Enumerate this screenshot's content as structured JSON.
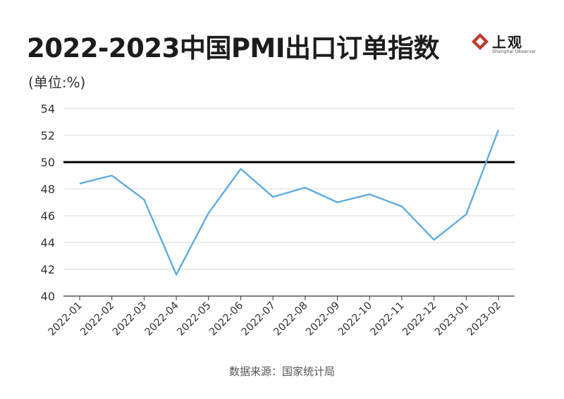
{
  "header": {
    "title": "2022-2023中国PMI出口订单指数",
    "unit": "(单位:%)"
  },
  "logo": {
    "name": "上观",
    "subtitle": "Shanghai Observer",
    "color": "#c0392b"
  },
  "source": "数据来源：国家统计局",
  "chart_data": {
    "type": "line",
    "categories": [
      "2022-01",
      "2022-02",
      "2022-03",
      "2022-04",
      "2022-05",
      "2022-06",
      "2022-07",
      "2022-08",
      "2022-09",
      "2022-10",
      "2022-11",
      "2022-12",
      "2023-01",
      "2023-02"
    ],
    "series": [
      {
        "values": [
          48.4,
          49.0,
          47.2,
          41.6,
          46.2,
          49.5,
          47.4,
          48.1,
          47.0,
          47.6,
          46.7,
          44.2,
          46.1,
          52.4
        ],
        "color": "#5dade2"
      }
    ],
    "ylim": [
      40,
      54
    ],
    "yticks": [
      40,
      42,
      44,
      46,
      48,
      50,
      52,
      54
    ],
    "reference_line": {
      "value": 50,
      "color": "#000000"
    },
    "grid": true,
    "title": "",
    "xlabel": "",
    "ylabel": ""
  }
}
